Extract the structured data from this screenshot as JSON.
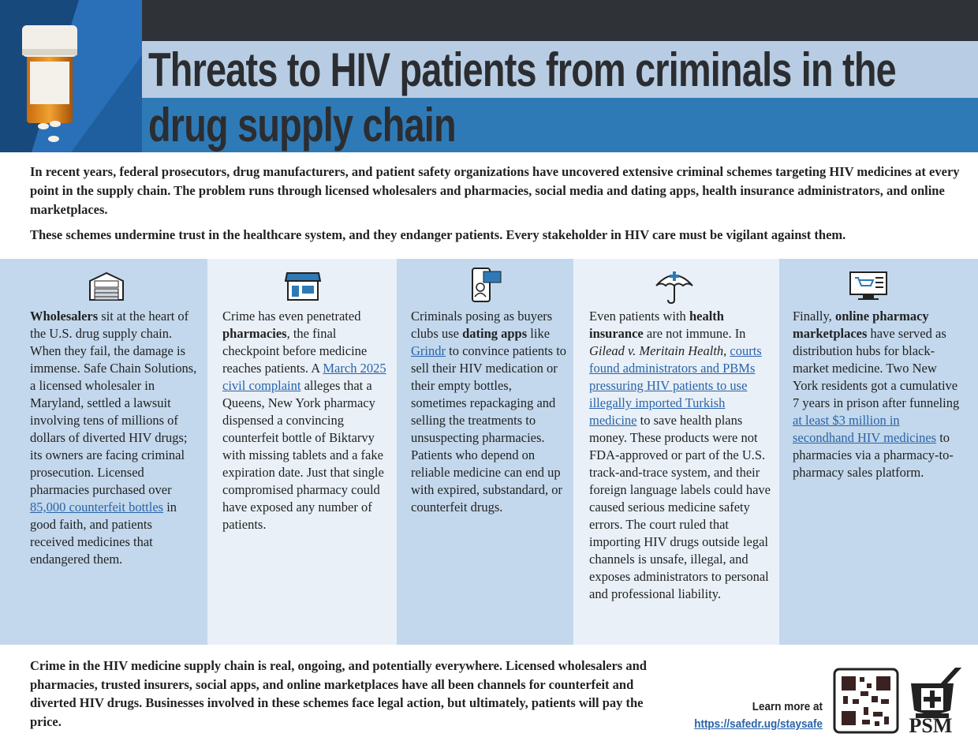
{
  "header": {
    "title": "Threats to HIV patients from criminals in the drug supply chain"
  },
  "intro": {
    "paragraphs": [
      "In recent years, federal prosecutors, drug manufacturers, and patient safety organizations have uncovered extensive criminal schemes targeting HIV medicines at every point in the supply chain. The problem runs through licensed wholesalers and pharmacies, social media and dating apps, health insurance administrators, and online marketplaces.",
      "These schemes undermine trust in the healthcare system, and they endanger patients. Every stakeholder in HIV care must be vigilant against them."
    ]
  },
  "columns": [
    {
      "segments": [
        {
          "text": "Wholesalers",
          "bold": true
        },
        {
          "text": " sit at the heart of the U.S. drug supply chain. When they fail, the damage is immense. Safe Chain Solutions, a licensed wholesaler in Maryland, settled a lawsuit involving tens of millions of dollars of diverted HIV drugs; its owners are facing criminal prosecution. Licensed pharmacies purchased over "
        },
        {
          "text": "85,000 counterfeit bottles",
          "link": true
        },
        {
          "text": " in good faith, and patients received medicines that endangered them."
        }
      ]
    },
    {
      "segments": [
        {
          "text": "Crime has even penetrated "
        },
        {
          "text": "pharmacies",
          "bold": true
        },
        {
          "text": ", the final checkpoint before medicine reaches patients. A "
        },
        {
          "text": "March 2025 civil complaint",
          "link": true
        },
        {
          "text": " alleges that a Queens, New York pharmacy dispensed a convincing counterfeit bottle of Biktarvy with missing tablets and a fake expiration date. Just that single compromised pharmacy could have exposed any number of patients."
        }
      ]
    },
    {
      "segments": [
        {
          "text": "Criminals posing as buyers clubs use "
        },
        {
          "text": "dating apps",
          "bold": true
        },
        {
          "text": " like "
        },
        {
          "text": "Grindr",
          "link": true
        },
        {
          "text": " to convince patients to sell their HIV medication or their empty bottles, sometimes repackaging and selling the treatments to unsuspecting pharmacies. Patients who depend on reliable medicine can end up with expired, substandard, or counterfeit drugs."
        }
      ]
    },
    {
      "segments": [
        {
          "text": "Even patients with "
        },
        {
          "text": "health insurance",
          "bold": true
        },
        {
          "text": " are not immune. In "
        },
        {
          "text": "Gilead v. Meritain Health",
          "italic": true
        },
        {
          "text": ", "
        },
        {
          "text": "courts found administrators and PBMs pressuring HIV patients to use illegally imported Turkish medicine",
          "link": true
        },
        {
          "text": " to save health plans money. These products were not FDA-approved or part of the U.S. track-and-trace system, and their foreign language labels could have caused serious medicine safety errors. The court ruled that importing HIV drugs outside legal channels is unsafe, illegal, and exposes administrators to personal and professional liability."
        }
      ]
    },
    {
      "segments": [
        {
          "text": "Finally, "
        },
        {
          "text": "online pharmacy marketplaces",
          "bold": true
        },
        {
          "text": " have served as distribution hubs for black-market medicine. Two New York residents got a cumulative 7 years in prison after funneling "
        },
        {
          "text": "at least $3 million in secondhand HIV medicines",
          "link": true
        },
        {
          "text": " to pharmacies via a pharmacy-to-pharmacy sales platform."
        }
      ]
    }
  ],
  "footer": {
    "text": "Crime in the HIV medicine supply chain is real, ongoing, and potentially everywhere. Licensed wholesalers and pharmacies, trusted insurers, social apps, and online marketplaces have all been channels for counterfeit and diverted HIV drugs. Businesses involved in these schemes face legal action, but ultimately, patients will pay the price.",
    "cta": "Learn more at",
    "url": "https://safedr.ug/staysafe",
    "logo": "PSM"
  }
}
